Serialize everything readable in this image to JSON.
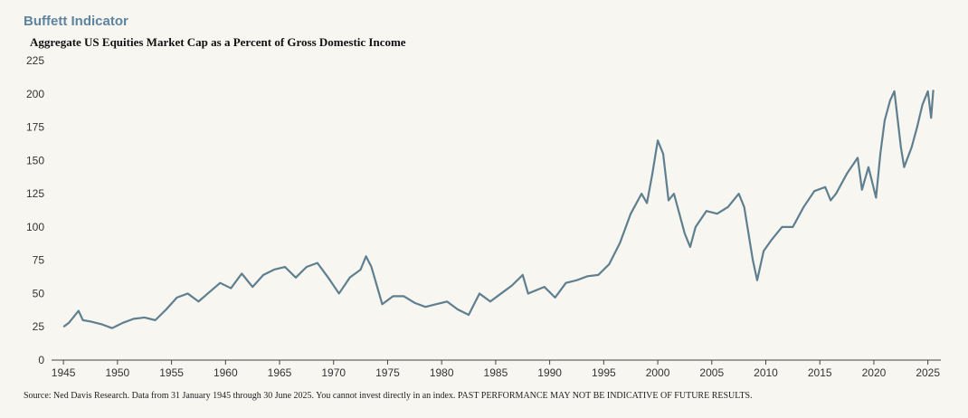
{
  "chart_data": {
    "type": "line",
    "title": "Buffett Indicator",
    "subtitle": "Aggregate US Equities Market Cap as a Percent of Gross Domestic Income",
    "source": "Source: Ned Davis Research. Data from 31 January 1945 through 30 June 2025. You cannot invest directly in an index. PAST PERFORMANCE MAY NOT BE INDICATIVE OF FUTURE RESULTS.",
    "x": [
      1945.0,
      1945.5,
      1946.0,
      1946.4,
      1946.8,
      1947.5,
      1948.5,
      1949.5,
      1950.5,
      1951.5,
      1952.5,
      1953.5,
      1954.5,
      1955.5,
      1956.5,
      1957.5,
      1958.5,
      1959.5,
      1960.5,
      1961.5,
      1962.5,
      1963.5,
      1964.5,
      1965.5,
      1966.5,
      1967.5,
      1968.5,
      1969.5,
      1970.5,
      1971.5,
      1972.5,
      1973.0,
      1973.5,
      1974.5,
      1975.5,
      1976.5,
      1977.5,
      1978.5,
      1979.5,
      1980.5,
      1981.5,
      1982.5,
      1983.5,
      1984.5,
      1985.5,
      1986.5,
      1987.5,
      1988.0,
      1989.5,
      1990.5,
      1991.5,
      1992.5,
      1993.5,
      1994.5,
      1995.5,
      1996.5,
      1997.5,
      1998.5,
      1999.0,
      1999.5,
      2000.0,
      2000.5,
      2001.0,
      2001.5,
      2002.5,
      2003.0,
      2003.5,
      2004.5,
      2005.5,
      2006.5,
      2007.5,
      2008.0,
      2008.8,
      2009.2,
      2009.8,
      2010.5,
      2011.5,
      2012.5,
      2013.5,
      2014.5,
      2015.5,
      2016.0,
      2016.5,
      2017.5,
      2018.5,
      2018.9,
      2019.5,
      2020.2,
      2020.6,
      2021.0,
      2021.5,
      2021.9,
      2022.5,
      2022.8,
      2023.5,
      2024.0,
      2024.5,
      2025.0,
      2025.3,
      2025.5
    ],
    "series": [
      {
        "name": "Buffett Indicator",
        "color": "#5f7f8f",
        "values": [
          25,
          28,
          33,
          37,
          30,
          29,
          27,
          24,
          28,
          31,
          32,
          30,
          38,
          47,
          50,
          44,
          51,
          58,
          54,
          65,
          55,
          64,
          68,
          70,
          62,
          70,
          73,
          62,
          50,
          62,
          68,
          78,
          70,
          42,
          48,
          48,
          43,
          40,
          42,
          44,
          38,
          34,
          50,
          44,
          50,
          56,
          64,
          50,
          55,
          47,
          58,
          60,
          63,
          64,
          72,
          88,
          110,
          125,
          118,
          140,
          165,
          155,
          120,
          125,
          95,
          85,
          100,
          112,
          110,
          115,
          125,
          115,
          75,
          60,
          82,
          90,
          100,
          100,
          115,
          127,
          130,
          120,
          125,
          140,
          152,
          128,
          145,
          122,
          155,
          180,
          195,
          202,
          160,
          145,
          160,
          175,
          192,
          202,
          182,
          203
        ]
      }
    ],
    "xlim": [
      1943.9,
      2026.2
    ],
    "ylim": [
      0,
      225
    ],
    "xticks": [
      1945,
      1950,
      1955,
      1960,
      1965,
      1970,
      1975,
      1980,
      1985,
      1990,
      1995,
      2000,
      2005,
      2010,
      2015,
      2020,
      2025
    ],
    "yticks": [
      0,
      25,
      50,
      75,
      100,
      125,
      150,
      175,
      200,
      225
    ],
    "grid": false
  }
}
